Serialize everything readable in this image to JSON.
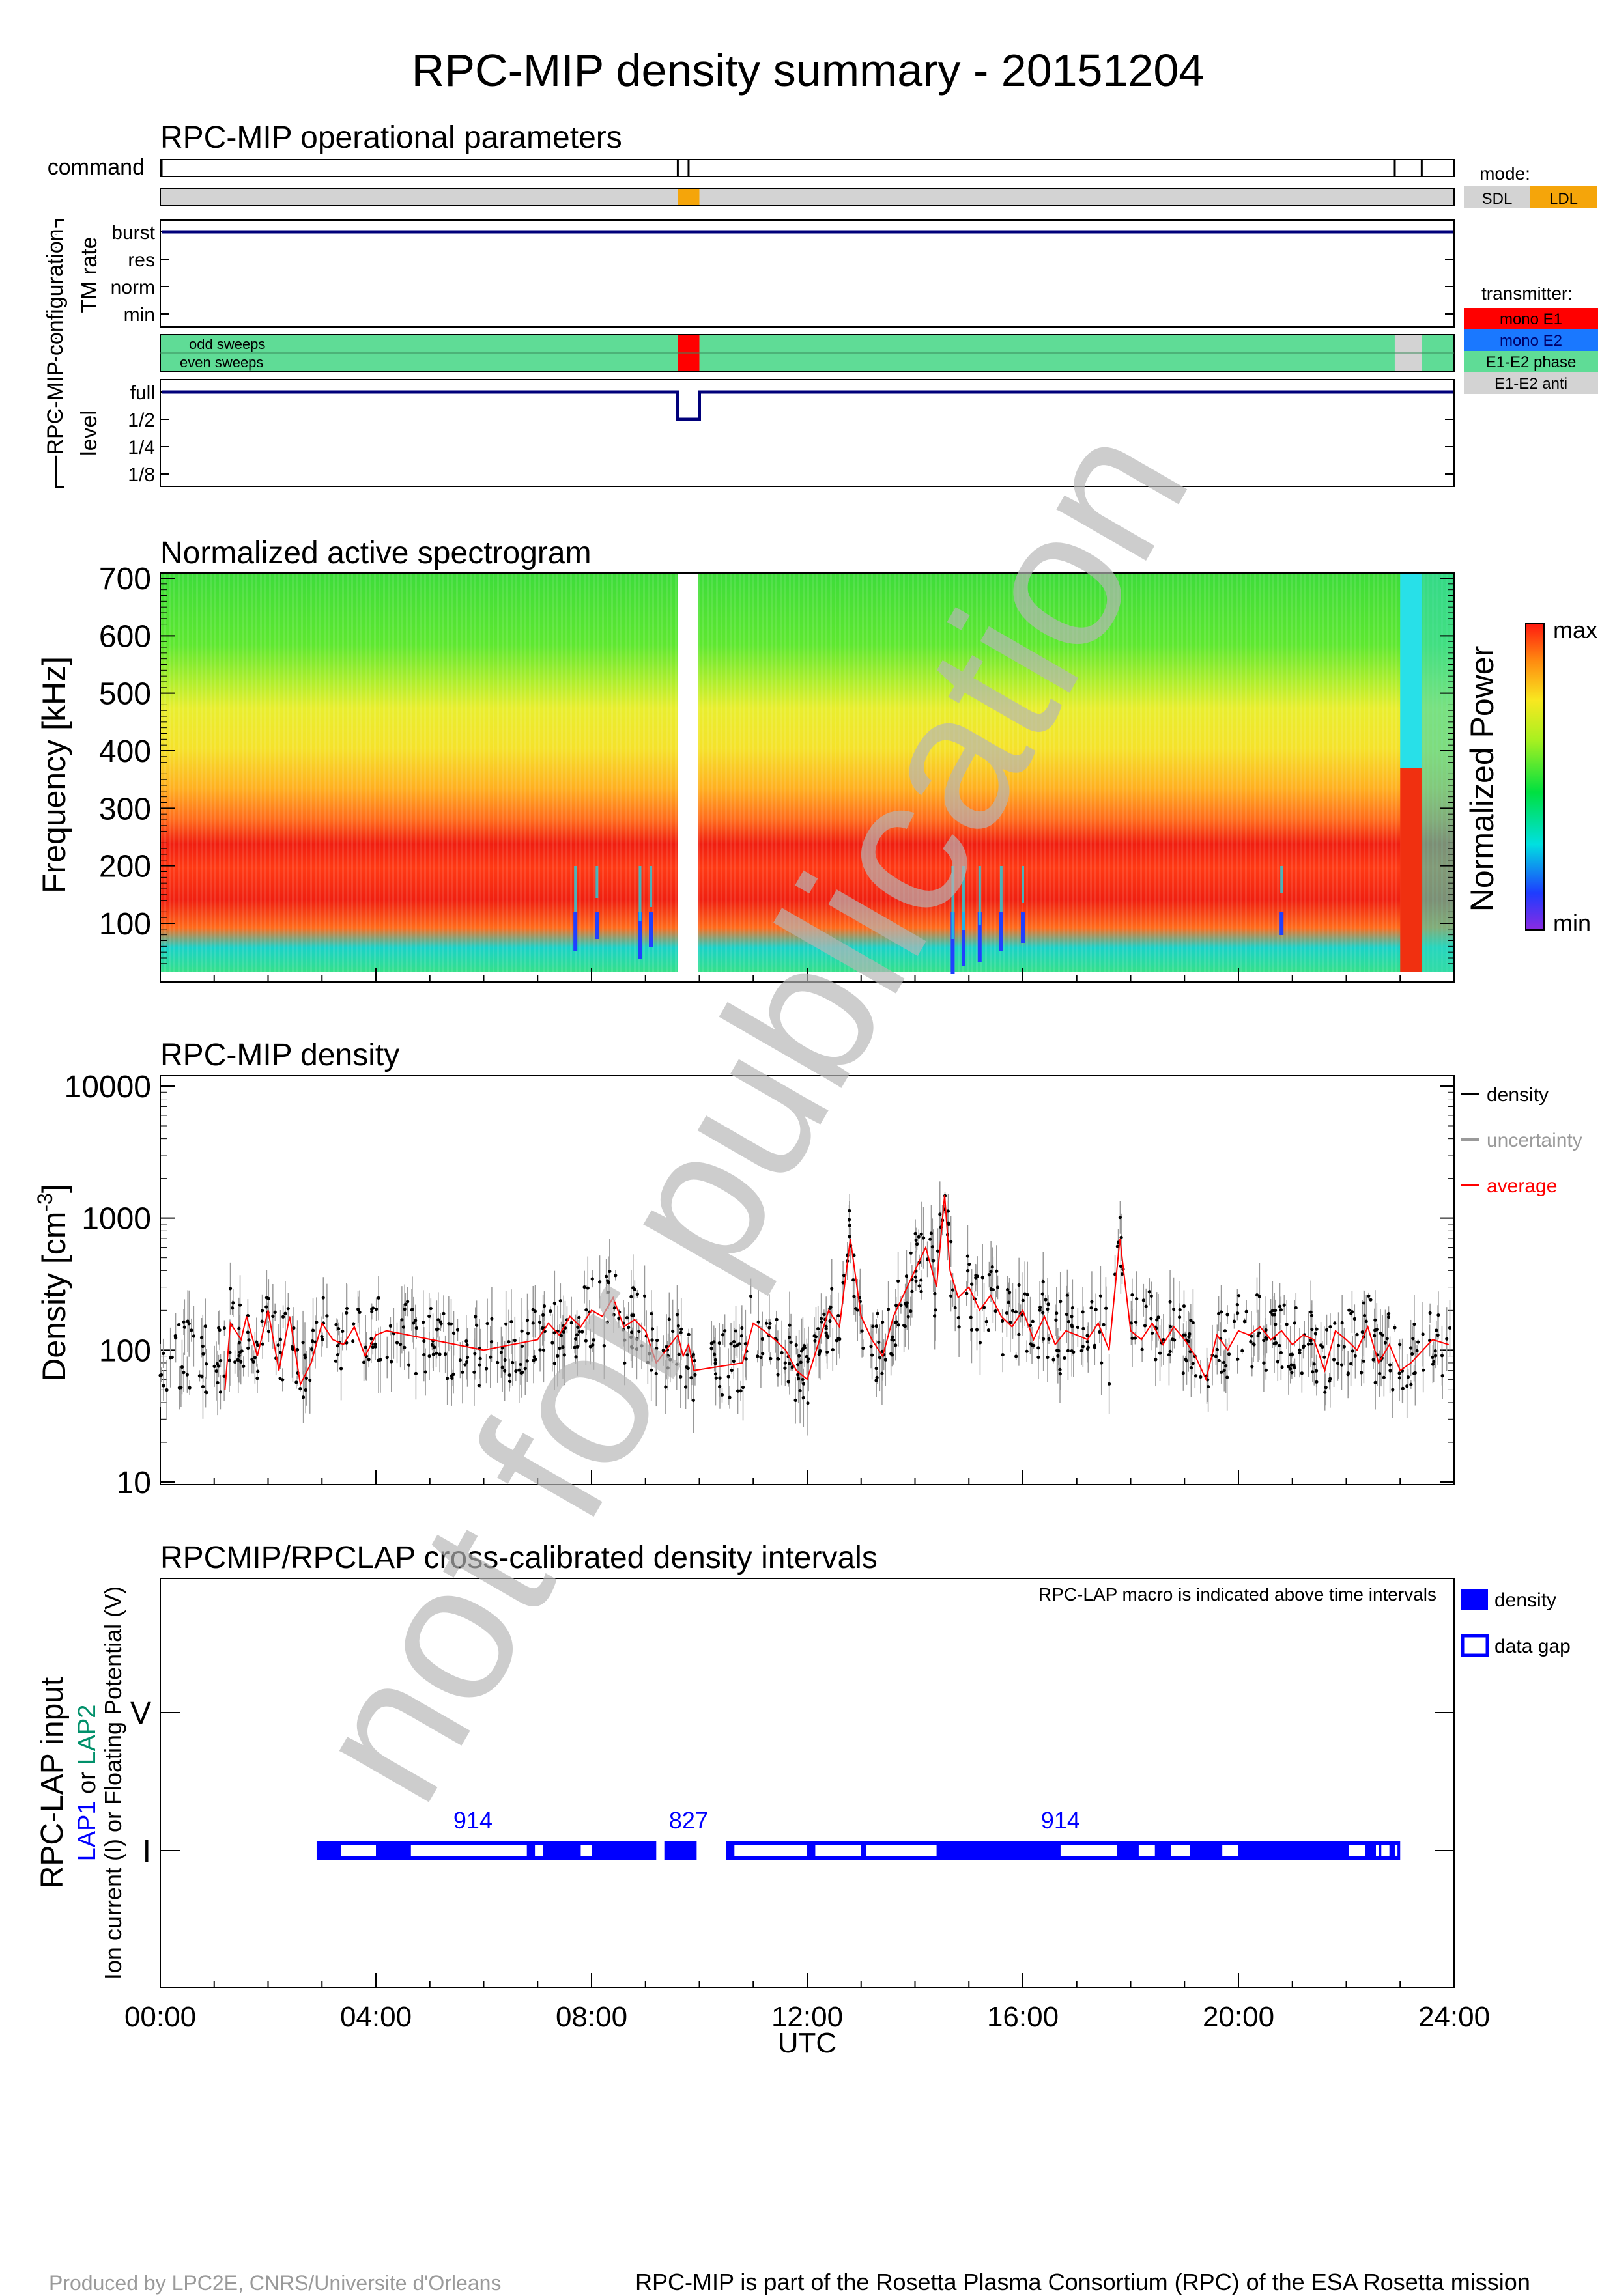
{
  "title": "RPC-MIP density summary - 20151204",
  "watermark": "not for publication",
  "ops": {
    "title": "RPC-MIP operational parameters",
    "command_label": "command",
    "config_label": "RPC-MIP configuration",
    "tm_rate_label": "TM rate",
    "tm_levels": [
      "burst",
      "res",
      "norm",
      "min"
    ],
    "level_label": "level",
    "levels": [
      "full",
      "1/2",
      "1/4",
      "1/8"
    ],
    "sweep_labels": [
      "odd sweeps",
      "even sweeps"
    ],
    "command_ticks_h": [
      9.6,
      9.8,
      22.9,
      23.4
    ],
    "mode_title": "mode:",
    "modes": [
      {
        "label": "SDL",
        "color": "#d3d3d3"
      },
      {
        "label": "LDL",
        "color": "#f5a50a"
      }
    ],
    "mode_segments": [
      {
        "start": 0,
        "end": 9.6,
        "mode": "SDL"
      },
      {
        "start": 9.6,
        "end": 10.0,
        "mode": "LDL"
      },
      {
        "start": 10.0,
        "end": 24,
        "mode": "SDL"
      }
    ],
    "transmitter_title": "transmitter:",
    "transmitters": [
      {
        "label": "mono E1",
        "color": "#ff0000"
      },
      {
        "label": "mono E2",
        "color": "#1a78ff"
      },
      {
        "label": "E1-E2 phase",
        "color": "#5fdc96"
      },
      {
        "label": "E1-E2 anti",
        "color": "#d3d3d3"
      }
    ],
    "transmitter_segments": [
      {
        "start": 0,
        "end": 9.6,
        "tx": "E1-E2 phase"
      },
      {
        "start": 9.6,
        "end": 10.0,
        "tx": "mono E1"
      },
      {
        "start": 10.0,
        "end": 22.9,
        "tx": "E1-E2 phase"
      },
      {
        "start": 22.9,
        "end": 23.4,
        "tx": "E1-E2 anti"
      },
      {
        "start": 23.4,
        "end": 24,
        "tx": "E1-E2 phase"
      }
    ],
    "tm_rate_value": "burst",
    "level_dips": [
      {
        "start": 9.6,
        "end": 10.0,
        "level": "1/2"
      }
    ]
  },
  "spectrogram": {
    "title": "Normalized active spectrogram",
    "ylabel": "Frequency [kHz]",
    "yticks": [
      100,
      200,
      300,
      400,
      500,
      600,
      700
    ],
    "ylim": [
      25,
      710
    ],
    "gap_h": [
      9.6,
      10.0
    ],
    "colorbar_label": "Normalized Power",
    "colorbar_max": "max",
    "colorbar_min": "min"
  },
  "density": {
    "title": "RPC-MIP density",
    "ylabel": "Density [cm",
    "ylabel_sup": "-3",
    "ylabel_end": "]",
    "yticks": [
      "10",
      "100",
      "1000",
      "10000"
    ],
    "legend": [
      {
        "label": "density",
        "color": "#000000"
      },
      {
        "label": "uncertainty",
        "color": "#9a9a9a"
      },
      {
        "label": "average",
        "color": "#ff0000"
      }
    ]
  },
  "lap": {
    "title": "RPCMIP/RPCLAP cross-calibrated density intervals",
    "note": "RPC-LAP macro is indicated above time intervals",
    "ylabel": "RPC-LAP input",
    "ylabel2_a": "LAP1",
    "ylabel2_b": " or ",
    "ylabel2_c": "LAP2",
    "ylabel3": "Ion current (I) or Floating Potential (V)",
    "yticks": [
      "I",
      "V"
    ],
    "legend": [
      {
        "label": "density"
      },
      {
        "label": "data gap"
      }
    ],
    "macros": [
      {
        "label": "914",
        "at_h": 5.8
      },
      {
        "label": "827",
        "at_h": 9.8
      },
      {
        "label": "914",
        "at_h": 16.7
      }
    ],
    "outer_intervals": [
      [
        2.9,
        9.2
      ],
      [
        9.35,
        9.95
      ],
      [
        10.5,
        23.0
      ]
    ],
    "gaps": [
      [
        3.35,
        4.0
      ],
      [
        4.65,
        6.8
      ],
      [
        6.95,
        7.1
      ],
      [
        7.8,
        8.0
      ],
      [
        10.65,
        12.0
      ],
      [
        12.15,
        13.0
      ],
      [
        13.1,
        14.4
      ],
      [
        16.7,
        17.75
      ],
      [
        18.15,
        18.45
      ],
      [
        18.75,
        19.1
      ],
      [
        19.7,
        20.0
      ],
      [
        22.05,
        22.35
      ],
      [
        22.55,
        22.6
      ],
      [
        22.65,
        22.8
      ],
      [
        22.9,
        22.95
      ]
    ]
  },
  "xaxis": {
    "label": "UTC",
    "ticks": [
      "00:00",
      "04:00",
      "08:00",
      "12:00",
      "16:00",
      "20:00",
      "24:00"
    ]
  },
  "chart_data": {
    "type": "scatter",
    "title": "RPC-MIP density",
    "xlabel": "UTC",
    "ylabel": "Density [cm-3]",
    "xlim": [
      0,
      24
    ],
    "ylim": [
      10,
      10000
    ],
    "y_scale": "log",
    "legend_position": "right",
    "series": [
      {
        "name": "average",
        "x": [
          1.2,
          1.3,
          1.5,
          1.6,
          1.8,
          2.0,
          2.2,
          2.4,
          2.6,
          2.8,
          3.0,
          3.2,
          3.4,
          3.6,
          3.8,
          4.0,
          4.2,
          6.0,
          7.0,
          7.2,
          7.4,
          7.6,
          7.8,
          8.0,
          8.2,
          8.4,
          8.6,
          8.8,
          9.0,
          9.2,
          9.6,
          9.7,
          9.8,
          9.9,
          10.8,
          11.0,
          11.2,
          11.4,
          11.6,
          11.8,
          12.0,
          12.4,
          12.6,
          12.8,
          13.0,
          13.2,
          13.4,
          13.6,
          14.2,
          14.4,
          14.55,
          14.65,
          14.8,
          15.0,
          15.2,
          15.4,
          15.6,
          15.8,
          16.0,
          16.2,
          16.4,
          16.6,
          16.8,
          17.0,
          17.2,
          17.4,
          17.6,
          17.8,
          18.0,
          18.2,
          18.4,
          18.6,
          18.8,
          19.0,
          19.2,
          19.4,
          19.6,
          19.8,
          20.0,
          20.2,
          20.4,
          20.6,
          20.8,
          21.0,
          21.2,
          21.4,
          21.6,
          21.8,
          22.0,
          22.2,
          22.4,
          22.6,
          22.8,
          23.0,
          23.2,
          23.6,
          23.9
        ],
        "y": [
          50,
          160,
          120,
          180,
          90,
          200,
          70,
          180,
          55,
          80,
          160,
          120,
          110,
          150,
          90,
          130,
          140,
          100,
          120,
          160,
          130,
          180,
          150,
          200,
          180,
          250,
          150,
          170,
          140,
          80,
          130,
          90,
          110,
          70,
          80,
          160,
          140,
          120,
          100,
          70,
          60,
          200,
          150,
          700,
          180,
          120,
          90,
          180,
          600,
          300,
          1500,
          400,
          250,
          300,
          200,
          260,
          180,
          150,
          200,
          120,
          180,
          110,
          140,
          130,
          120,
          160,
          100,
          700,
          140,
          120,
          160,
          110,
          150,
          120,
          90,
          60,
          130,
          100,
          140,
          130,
          150,
          120,
          140,
          110,
          130,
          120,
          70,
          140,
          120,
          100,
          150,
          80,
          110,
          70,
          80,
          120,
          110
        ]
      },
      {
        "name": "density",
        "note": "dense scatter of individual measurements with error bars (uncertainty) from ~20 to ~2500 cm-3"
      }
    ]
  }
}
